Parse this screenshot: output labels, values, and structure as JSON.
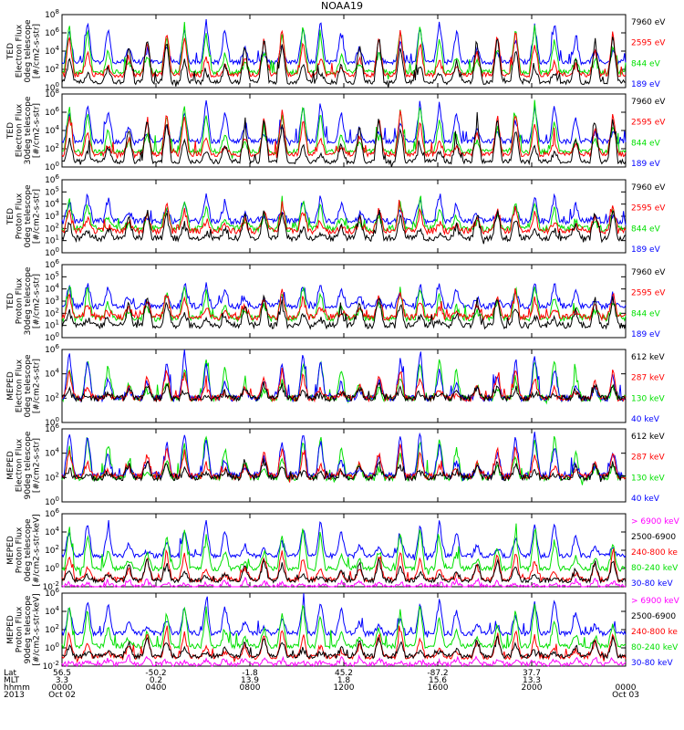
{
  "title": "NOAA19",
  "colors": {
    "black": "#000000",
    "red": "#ff0000",
    "green": "#00e000",
    "blue": "#0000ff",
    "magenta": "#ff00ff"
  },
  "chart_data": {
    "type": "line",
    "x_time_labels": [
      "0000",
      "0400",
      "0800",
      "1200",
      "1600",
      "2000",
      "0000"
    ],
    "x_date_labels": [
      "Oct 02",
      "Oct 03"
    ],
    "x_hours": [
      0,
      4,
      8,
      12,
      16,
      20,
      24
    ],
    "footer": {
      "row_labels": [
        "Lat",
        "MLT",
        "hhmm",
        "2013"
      ],
      "lat": [
        "56.5",
        "-50.2",
        "-1.8",
        "45.2",
        "-87.2",
        "37.7"
      ],
      "mlt": [
        "3.3",
        "0.2",
        "13.9",
        "1.8",
        "15.6",
        "13.3"
      ]
    },
    "panels": [
      {
        "instrument": "TED",
        "label": [
          "TED",
          "Electron Flux",
          "0deg telescope",
          "[#/cm2-s-str]"
        ],
        "ylog": [
          0,
          8
        ],
        "ticks": [
          0,
          2,
          4,
          6,
          8
        ],
        "legend": [
          {
            "text": "7960 eV",
            "color": "black"
          },
          {
            "text": "2595 eV",
            "color": "red"
          },
          {
            "text": "844 eV",
            "color": "green"
          },
          {
            "text": "189 eV",
            "color": "blue"
          }
        ],
        "series": [
          {
            "color": "blue",
            "base": 2.8,
            "peak": 7.4
          },
          {
            "color": "green",
            "base": 1.7,
            "peak": 7.0
          },
          {
            "color": "red",
            "base": 1.4,
            "peak": 6.4
          },
          {
            "color": "black",
            "base": 0.6,
            "peak": 5.8
          }
        ]
      },
      {
        "instrument": "TED",
        "label": [
          "TED",
          "Electron Flux",
          "30deg telescope",
          "[#/cm2-s-str]"
        ],
        "ylog": [
          0,
          8
        ],
        "ticks": [
          0,
          2,
          4,
          6,
          8
        ],
        "legend": [
          {
            "text": "7960 eV",
            "color": "black"
          },
          {
            "text": "2595 eV",
            "color": "red"
          },
          {
            "text": "844 eV",
            "color": "green"
          },
          {
            "text": "189 eV",
            "color": "blue"
          }
        ],
        "series": [
          {
            "color": "blue",
            "base": 2.8,
            "peak": 7.2
          },
          {
            "color": "green",
            "base": 1.7,
            "peak": 6.9
          },
          {
            "color": "red",
            "base": 1.4,
            "peak": 6.3
          },
          {
            "color": "black",
            "base": 0.6,
            "peak": 5.6
          }
        ]
      },
      {
        "instrument": "TED",
        "label": [
          "TED",
          "Proton Flux",
          "0deg telescope",
          "[#/cm2-s-str]"
        ],
        "ylog": [
          0,
          6
        ],
        "ticks": [
          0,
          1,
          2,
          3,
          4,
          5,
          6
        ],
        "legend": [
          {
            "text": "7960 eV",
            "color": "black"
          },
          {
            "text": "2595 eV",
            "color": "red"
          },
          {
            "text": "844 eV",
            "color": "green"
          },
          {
            "text": "189 eV",
            "color": "blue"
          }
        ],
        "series": [
          {
            "color": "blue",
            "base": 2.6,
            "peak": 4.8
          },
          {
            "color": "green",
            "base": 2.0,
            "peak": 4.4
          },
          {
            "color": "red",
            "base": 1.8,
            "peak": 4.0
          },
          {
            "color": "black",
            "base": 1.2,
            "peak": 3.6
          }
        ]
      },
      {
        "instrument": "TED",
        "label": [
          "TED",
          "Proton Flux",
          "30deg telescope",
          "[#/cm2-s-str]"
        ],
        "ylog": [
          0,
          6
        ],
        "ticks": [
          0,
          1,
          2,
          3,
          4,
          5,
          6
        ],
        "legend": [
          {
            "text": "7960 eV",
            "color": "black"
          },
          {
            "text": "2595 eV",
            "color": "red"
          },
          {
            "text": "844 eV",
            "color": "green"
          },
          {
            "text": "189 eV",
            "color": "blue"
          }
        ],
        "series": [
          {
            "color": "blue",
            "base": 2.6,
            "peak": 4.6
          },
          {
            "color": "green",
            "base": 1.6,
            "peak": 4.4
          },
          {
            "color": "red",
            "base": 1.7,
            "peak": 3.8
          },
          {
            "color": "black",
            "base": 1.0,
            "peak": 3.4
          }
        ]
      },
      {
        "instrument": "MEPED",
        "label": [
          "MEPED",
          "Electron Flux",
          "0deg telescope",
          "[#/cm2-s-str]"
        ],
        "ylog": [
          0,
          6
        ],
        "ticks": [
          0,
          2,
          4,
          6
        ],
        "legend": [
          {
            "text": "612 keV",
            "color": "black"
          },
          {
            "text": "287 keV",
            "color": "red"
          },
          {
            "text": "130 keV",
            "color": "green"
          },
          {
            "text": "40 keV",
            "color": "blue"
          }
        ],
        "series": [
          {
            "color": "green",
            "base": 2.0,
            "peak": 5.4
          },
          {
            "color": "blue",
            "base": 2.0,
            "peak": 5.8
          },
          {
            "color": "red",
            "base": 2.0,
            "peak": 4.4
          },
          {
            "color": "black",
            "base": 2.0,
            "peak": 3.2
          }
        ]
      },
      {
        "instrument": "MEPED",
        "label": [
          "MEPED",
          "Electron Flux",
          "90deg telescope",
          "[#/cm2-s-str]"
        ],
        "ylog": [
          0,
          6
        ],
        "ticks": [
          0,
          2,
          4,
          6
        ],
        "legend": [
          {
            "text": "612 keV",
            "color": "black"
          },
          {
            "text": "287 keV",
            "color": "red"
          },
          {
            "text": "130 keV",
            "color": "green"
          },
          {
            "text": "40 keV",
            "color": "blue"
          }
        ],
        "series": [
          {
            "color": "green",
            "base": 2.0,
            "peak": 5.6
          },
          {
            "color": "blue",
            "base": 2.2,
            "peak": 5.9
          },
          {
            "color": "red",
            "base": 2.1,
            "peak": 4.6
          },
          {
            "color": "black",
            "base": 2.0,
            "peak": 3.4
          }
        ]
      },
      {
        "instrument": "MEPED",
        "label": [
          "MEPED",
          "Proton Flux",
          "0deg telescope",
          "[#/cm2-s-str-keV]"
        ],
        "ylog": [
          -2,
          6
        ],
        "ticks": [
          -2,
          0,
          2,
          4,
          6
        ],
        "legend": [
          {
            "text": "> 6900 keV",
            "color": "magenta"
          },
          {
            "text": "2500-6900",
            "color": "black"
          },
          {
            "text": "240-800 ke",
            "color": "red"
          },
          {
            "text": "80-240 keV",
            "color": "green"
          },
          {
            "text": "30-80 keV",
            "color": "blue"
          }
        ],
        "series": [
          {
            "color": "blue",
            "base": 1.4,
            "peak": 5.2
          },
          {
            "color": "green",
            "base": 0.0,
            "peak": 4.6
          },
          {
            "color": "red",
            "base": -1.2,
            "peak": 2.0
          },
          {
            "color": "black",
            "base": -1.3,
            "peak": 1.0
          },
          {
            "color": "magenta",
            "base": -2.0,
            "peak": -1.2
          }
        ]
      },
      {
        "instrument": "MEPED",
        "label": [
          "MEPED",
          "Proton Flux",
          "90deg telescope",
          "[#/cm2-s-str-keV]"
        ],
        "ylog": [
          -2,
          6
        ],
        "ticks": [
          -2,
          0,
          2,
          4,
          6
        ],
        "legend": [
          {
            "text": "> 6900 keV",
            "color": "magenta"
          },
          {
            "text": "2500-6900",
            "color": "black"
          },
          {
            "text": "240-800 ke",
            "color": "red"
          },
          {
            "text": "80-240 keV",
            "color": "green"
          },
          {
            "text": "30-80 keV",
            "color": "blue"
          }
        ],
        "series": [
          {
            "color": "blue",
            "base": 1.6,
            "peak": 5.4
          },
          {
            "color": "green",
            "base": 0.2,
            "peak": 4.8
          },
          {
            "color": "red",
            "base": -1.0,
            "peak": 2.2
          },
          {
            "color": "black",
            "base": -0.9,
            "peak": 1.2
          },
          {
            "color": "magenta",
            "base": -1.8,
            "peak": -1.0
          }
        ]
      }
    ]
  }
}
